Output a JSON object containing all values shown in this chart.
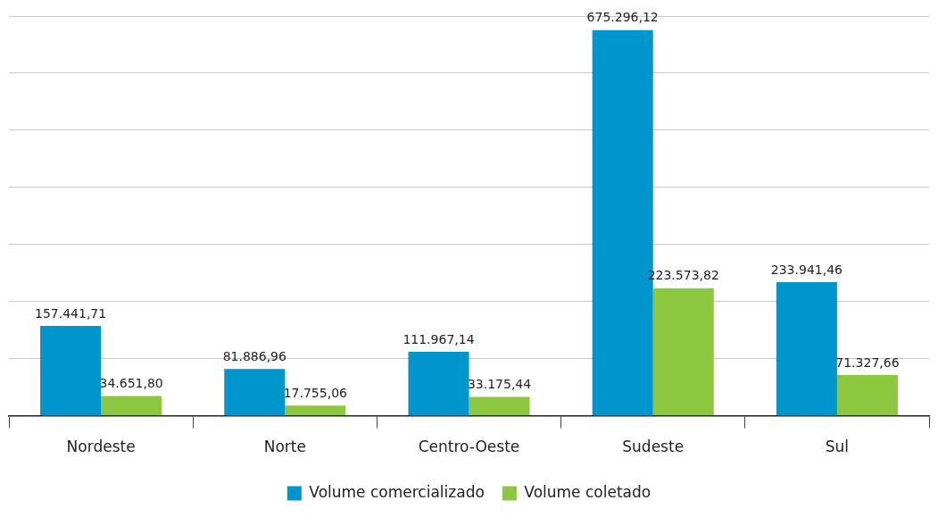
{
  "chart_data": {
    "type": "bar",
    "categories": [
      "Nordeste",
      "Norte",
      "Centro-Oeste",
      "Sudeste",
      "Sul"
    ],
    "series": [
      {
        "name": "Volume comercializado",
        "color": "#0095cd",
        "values": [
          157441.71,
          81886.96,
          111967.14,
          675296.12,
          233941.46
        ],
        "value_labels": [
          "157.441,71",
          "81.886,96",
          "111.967,14",
          "675.296,12",
          "233.941,46"
        ]
      },
      {
        "name": "Volume coletado",
        "color": "#8dc63f",
        "values": [
          34651.8,
          17755.06,
          33175.44,
          223573.82,
          71327.66
        ],
        "value_labels": [
          "34.651,80",
          "17.755,06",
          "33.175,44",
          "223.573,82",
          "71.327,66"
        ]
      }
    ],
    "tick_labels": "x",
    "grid": "y",
    "legend": "bottom"
  }
}
